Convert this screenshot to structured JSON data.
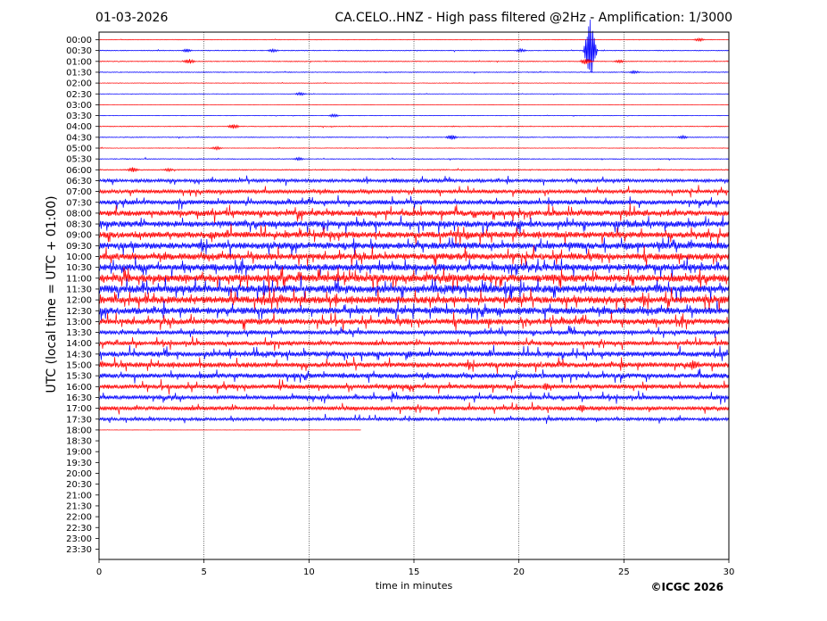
{
  "header": {
    "date": "01-03-2026",
    "title": "CA.CELO..HNZ - High pass filtered @2Hz - Amplification: 1/3000"
  },
  "footer": {
    "copyright": "©ICGC 2026"
  },
  "colors": {
    "odd_trace": "#ff0000",
    "even_trace": "#0000ff",
    "grid": "#000000"
  },
  "chart_data": {
    "type": "line",
    "subtype": "helicorder",
    "xlabel": "time in minutes",
    "ylabel": "UTC (local time = UTC + 01:00)",
    "xlim": [
      0,
      30
    ],
    "xticks": [
      "0",
      "5",
      "10",
      "15",
      "20",
      "25",
      "30"
    ],
    "grid": "vertical dotted lines at 5-minute intervals",
    "row_labels": [
      "00:00",
      "00:30",
      "01:00",
      "01:30",
      "02:00",
      "02:30",
      "03:00",
      "03:30",
      "04:00",
      "04:30",
      "05:00",
      "05:30",
      "06:00",
      "06:30",
      "07:00",
      "07:30",
      "08:00",
      "08:30",
      "09:00",
      "09:30",
      "10:00",
      "10:30",
      "11:00",
      "11:30",
      "12:00",
      "12:30",
      "13:00",
      "13:30",
      "14:00",
      "14:30",
      "15:00",
      "15:30",
      "16:00",
      "16:30",
      "17:00",
      "17:30",
      "18:00",
      "18:30",
      "19:00",
      "19:30",
      "20:00",
      "20:30",
      "21:00",
      "21:30",
      "22:00",
      "22:30",
      "23:00",
      "23:30"
    ],
    "trace_colors": [
      "#ff0000",
      "#0000ff"
    ],
    "recorded_rows": 37,
    "last_row_end_minute": 12.5,
    "noise_level_by_row": [
      0.2,
      0.3,
      0.3,
      0.3,
      0.2,
      0.2,
      0.1,
      0.2,
      0.3,
      0.3,
      0.2,
      0.3,
      0.4,
      1.2,
      1.4,
      1.7,
      2.1,
      2.3,
      2.3,
      2.4,
      2.4,
      2.5,
      2.8,
      2.8,
      2.6,
      2.5,
      2.2,
      1.6,
      1.6,
      1.9,
      1.9,
      1.8,
      1.7,
      1.5,
      1.5,
      1.1,
      0.1
    ],
    "events": [
      {
        "row": "00:00",
        "minute": 28.6,
        "amplitude": 2
      },
      {
        "row": "00:30",
        "minute": 4.2,
        "amplitude": 2
      },
      {
        "row": "00:30",
        "minute": 8.3,
        "amplitude": 2
      },
      {
        "row": "00:30",
        "minute": 20.1,
        "amplitude": 2
      },
      {
        "row": "00:30",
        "minute": 23.4,
        "amplitude": 36
      },
      {
        "row": "01:00",
        "minute": 4.3,
        "amplitude": 3
      },
      {
        "row": "01:00",
        "minute": 23.2,
        "amplitude": 4
      },
      {
        "row": "01:00",
        "minute": 24.8,
        "amplitude": 2
      },
      {
        "row": "01:30",
        "minute": 25.5,
        "amplitude": 2
      },
      {
        "row": "02:30",
        "minute": 9.6,
        "amplitude": 2
      },
      {
        "row": "03:30",
        "minute": 11.2,
        "amplitude": 2
      },
      {
        "row": "04:00",
        "minute": 6.4,
        "amplitude": 3
      },
      {
        "row": "04:30",
        "minute": 16.8,
        "amplitude": 3
      },
      {
        "row": "04:30",
        "minute": 27.8,
        "amplitude": 2
      },
      {
        "row": "05:00",
        "minute": 5.6,
        "amplitude": 2
      },
      {
        "row": "05:30",
        "minute": 9.5,
        "amplitude": 2
      },
      {
        "row": "06:00",
        "minute": 1.6,
        "amplitude": 3
      },
      {
        "row": "06:00",
        "minute": 3.3,
        "amplitude": 2
      },
      {
        "row": "06:30",
        "minute": 14.1,
        "amplitude": 3
      },
      {
        "row": "14:30",
        "minute": 6.3,
        "amplitude": 3
      },
      {
        "row": "14:30",
        "minute": 14.8,
        "amplitude": 4
      },
      {
        "row": "15:00",
        "minute": 28.3,
        "amplitude": 6
      },
      {
        "row": "16:00",
        "minute": 21.3,
        "amplitude": 5
      },
      {
        "row": "16:30",
        "minute": 14.7,
        "amplitude": 3
      },
      {
        "row": "17:00",
        "minute": 23.0,
        "amplitude": 5
      },
      {
        "row": "17:30",
        "minute": 15.3,
        "amplitude": 2
      }
    ]
  }
}
